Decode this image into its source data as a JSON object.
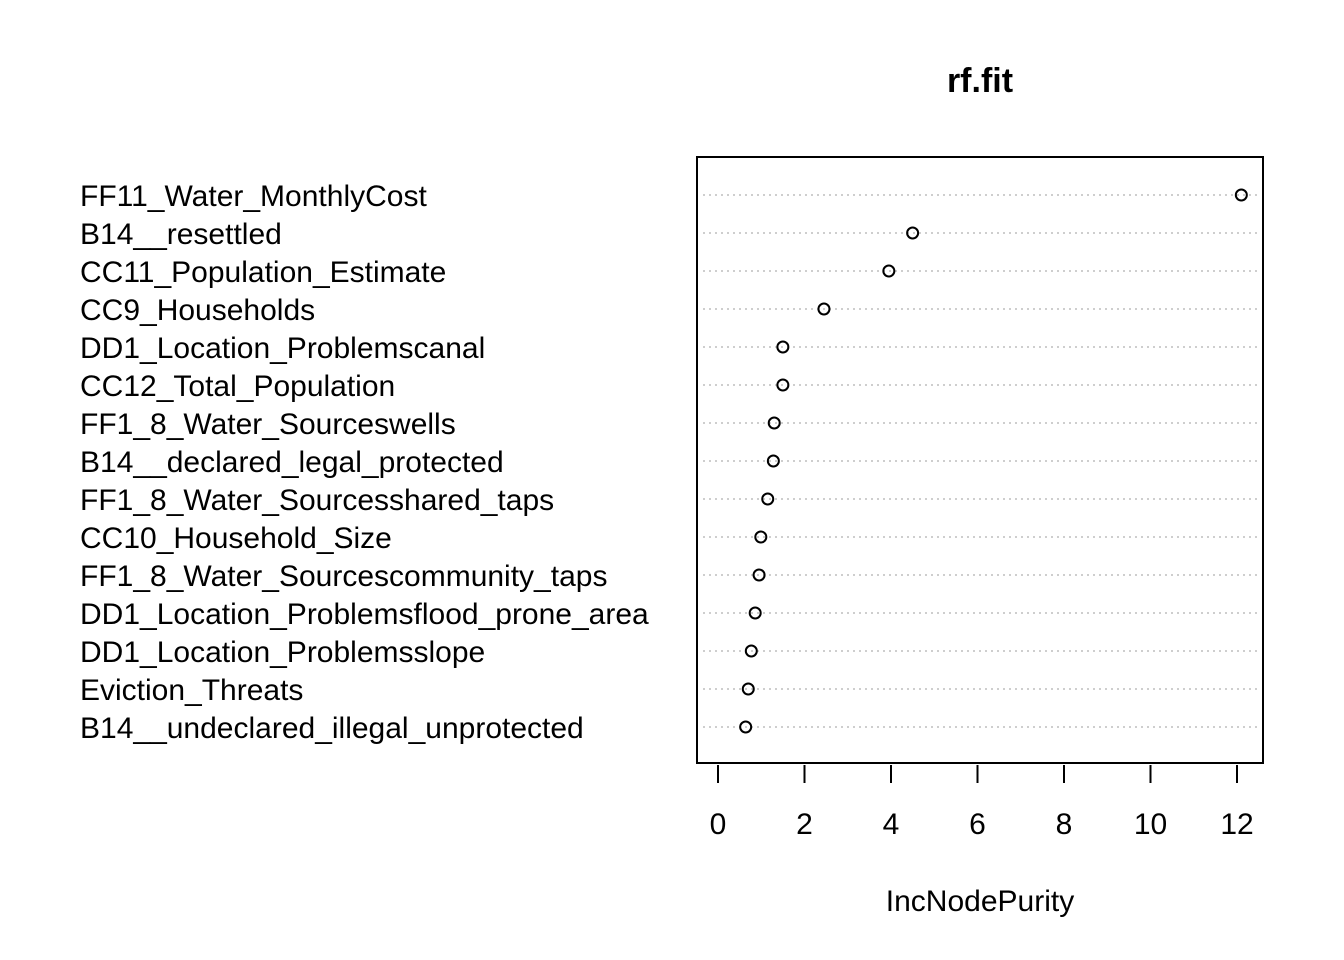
{
  "chart_data": {
    "type": "scatter",
    "subtype": "dotchart",
    "title": "rf.fit",
    "xlabel": "IncNodePurity",
    "ylabel": "",
    "xlim": [
      0,
      12
    ],
    "xticks": [
      "0",
      "2",
      "4",
      "6",
      "8",
      "10",
      "12"
    ],
    "grid": "dotted horizontal lines",
    "legend": "none",
    "categories": [
      "FF11_Water_MonthlyCost",
      "B14__resettled",
      "CC11_Population_Estimate",
      "CC9_Households",
      "DD1_Location_Problemscanal",
      "CC12_Total_Population",
      "FF1_8_Water_Sourceswells",
      "B14__declared_legal_protected",
      "FF1_8_Water_Sourcesshared_taps",
      "CC10_Household_Size",
      "FF1_8_Water_Sourcescommunity_taps",
      "DD1_Location_Problemsflood_prone_area",
      "DD1_Location_Problemsslope",
      "Eviction_Threats",
      "B14__undeclared_illegal_unprotected"
    ],
    "values": [
      12.1,
      4.5,
      3.95,
      2.45,
      1.5,
      1.5,
      1.3,
      1.28,
      1.15,
      0.99,
      0.95,
      0.86,
      0.77,
      0.7,
      0.64
    ]
  }
}
